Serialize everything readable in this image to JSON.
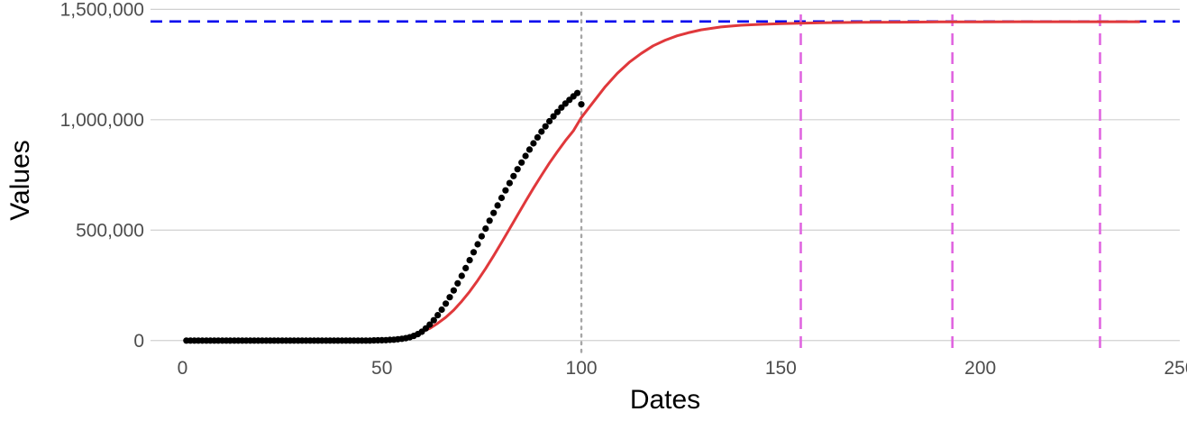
{
  "chart_data": {
    "type": "scatter",
    "xlabel": "Dates",
    "ylabel": "Values",
    "xlim": [
      -8,
      250
    ],
    "ylim": [
      -50000,
      1530000
    ],
    "x_ticks": [
      0,
      50,
      100,
      150,
      200,
      250
    ],
    "x_tick_labels": [
      "0",
      "50",
      "100",
      "150",
      "200",
      "250"
    ],
    "y_ticks": [
      0,
      500000,
      1000000,
      1500000
    ],
    "y_tick_labels": [
      "0",
      "500,000",
      "1,000,000",
      "1,500,000"
    ],
    "grid": "horizontal",
    "observed": {
      "color": "#000000",
      "x": [
        1,
        2,
        3,
        4,
        5,
        6,
        7,
        8,
        9,
        10,
        11,
        12,
        13,
        14,
        15,
        16,
        17,
        18,
        19,
        20,
        21,
        22,
        23,
        24,
        25,
        26,
        27,
        28,
        29,
        30,
        31,
        32,
        33,
        34,
        35,
        36,
        37,
        38,
        39,
        40,
        41,
        42,
        43,
        44,
        45,
        46,
        47,
        48,
        49,
        50,
        51,
        52,
        53,
        54,
        55,
        56,
        57,
        58,
        59,
        60,
        61,
        62,
        63,
        64,
        65,
        66,
        67,
        68,
        69,
        70,
        71,
        72,
        73,
        74,
        75,
        76,
        77,
        78,
        79,
        80,
        81,
        82,
        83,
        84,
        85,
        86,
        87,
        88,
        89,
        90,
        91,
        92,
        93,
        94,
        95,
        96,
        97,
        98,
        99,
        100
      ],
      "y": [
        0,
        0,
        0,
        0,
        0,
        0,
        0,
        0,
        0,
        0,
        0,
        0,
        0,
        0,
        0,
        0,
        0,
        0,
        0,
        0,
        0,
        0,
        0,
        0,
        0,
        0,
        0,
        0,
        0,
        0,
        0,
        0,
        0,
        0,
        0,
        0,
        0,
        0,
        0,
        0,
        0,
        0,
        0,
        0,
        0,
        0,
        0,
        500,
        1000,
        1500,
        2000,
        3000,
        4000,
        6000,
        8000,
        11000,
        15000,
        21000,
        29000,
        40000,
        55000,
        72000,
        92000,
        115000,
        140000,
        167000,
        196000,
        227000,
        259000,
        293000,
        328000,
        364000,
        400000,
        436000,
        472000,
        507000,
        543000,
        578000,
        612000,
        646000,
        680000,
        713000,
        745000,
        776000,
        806000,
        836000,
        865000,
        893000,
        920000,
        946000,
        970000,
        993000,
        1015000,
        1035000,
        1055000,
        1073000,
        1090000,
        1106000,
        1121000,
        1070000
      ]
    },
    "fitted": {
      "color": "#e0383b",
      "x": [
        60,
        62,
        64,
        66,
        68,
        70,
        72,
        74,
        76,
        78,
        80,
        82,
        84,
        86,
        88,
        90,
        92,
        94,
        96,
        98,
        100,
        103,
        106,
        109,
        112,
        115,
        118,
        121,
        124,
        127,
        130,
        135,
        140,
        145,
        150,
        155,
        160,
        165,
        170,
        180,
        190,
        200,
        210,
        220,
        230,
        240
      ],
      "y": [
        40000,
        55000,
        78000,
        105000,
        138000,
        178000,
        222000,
        272000,
        326000,
        384000,
        444000,
        506000,
        568000,
        630000,
        690000,
        748000,
        804000,
        856000,
        905000,
        950000,
        1010000,
        1080000,
        1150000,
        1210000,
        1260000,
        1300000,
        1335000,
        1360000,
        1380000,
        1395000,
        1407000,
        1420000,
        1428000,
        1432000,
        1435000,
        1437000,
        1439000,
        1440000,
        1441000,
        1442000,
        1443000,
        1443500,
        1444000,
        1444000,
        1444000,
        1444000
      ]
    },
    "annotations": {
      "asymptote_y": 1445000,
      "asymptote_color": "#0000ee",
      "cutoff_x": 100,
      "cutoff_color": "#a6a6a6",
      "marker_x": [
        155,
        193,
        230
      ],
      "marker_color": "#e066e0"
    }
  }
}
